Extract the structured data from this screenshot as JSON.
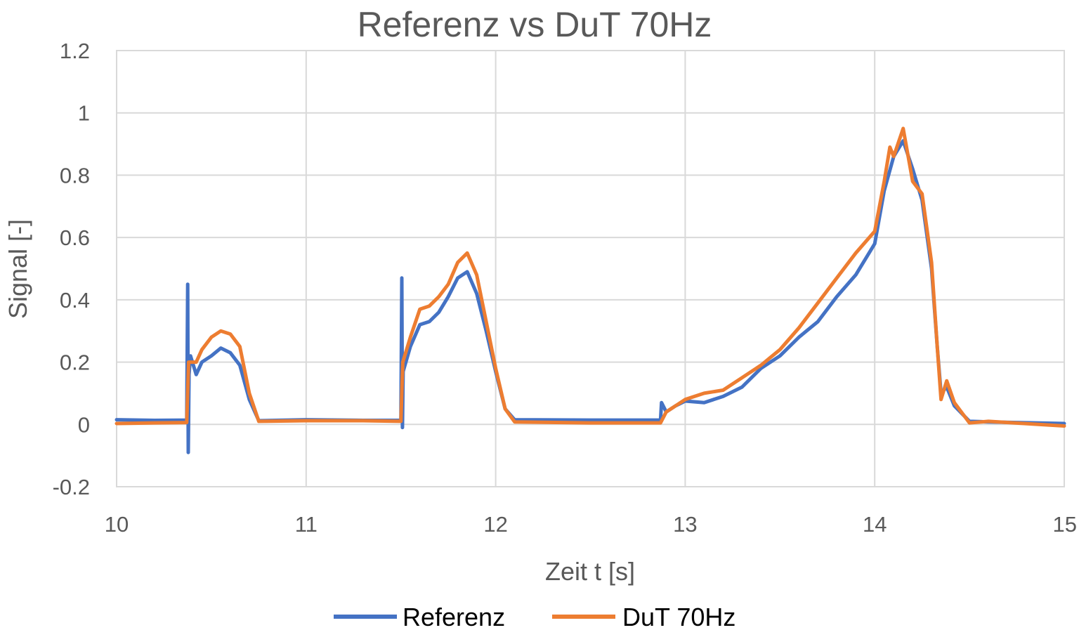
{
  "chart_data": {
    "type": "line",
    "title": "Referenz vs DuT 70Hz",
    "xlabel": "Zeit t [s]",
    "ylabel": "Signal [-]",
    "xlim": [
      10,
      15
    ],
    "ylim": [
      -0.2,
      1.2
    ],
    "x_ticks": [
      10,
      11,
      12,
      13,
      14,
      15
    ],
    "y_ticks": [
      -0.2,
      0,
      0.2,
      0.4,
      0.6,
      0.8,
      1,
      1.2
    ],
    "x_tick_labels": [
      "10",
      "11",
      "12",
      "13",
      "14",
      "15"
    ],
    "y_tick_labels": [
      "-0.2",
      "0",
      "0.2",
      "0.4",
      "0.6",
      "0.8",
      "1",
      "1.2"
    ],
    "grid": true,
    "legend_position": "bottom",
    "series": [
      {
        "name": "Referenz",
        "color": "#4472c4",
        "points": [
          [
            10.0,
            0.015
          ],
          [
            10.2,
            0.013
          ],
          [
            10.37,
            0.014
          ],
          [
            10.375,
            0.45
          ],
          [
            10.378,
            -0.09
          ],
          [
            10.382,
            0.16
          ],
          [
            10.39,
            0.22
          ],
          [
            10.42,
            0.16
          ],
          [
            10.45,
            0.2
          ],
          [
            10.5,
            0.22
          ],
          [
            10.55,
            0.245
          ],
          [
            10.6,
            0.23
          ],
          [
            10.65,
            0.19
          ],
          [
            10.7,
            0.08
          ],
          [
            10.75,
            0.012
          ],
          [
            11.0,
            0.015
          ],
          [
            11.3,
            0.013
          ],
          [
            11.5,
            0.013
          ],
          [
            11.505,
            0.47
          ],
          [
            11.508,
            -0.01
          ],
          [
            11.512,
            0.17
          ],
          [
            11.55,
            0.25
          ],
          [
            11.6,
            0.32
          ],
          [
            11.65,
            0.33
          ],
          [
            11.7,
            0.36
          ],
          [
            11.75,
            0.41
          ],
          [
            11.8,
            0.47
          ],
          [
            11.85,
            0.49
          ],
          [
            11.9,
            0.42
          ],
          [
            11.95,
            0.3
          ],
          [
            12.0,
            0.17
          ],
          [
            12.05,
            0.05
          ],
          [
            12.1,
            0.015
          ],
          [
            12.5,
            0.014
          ],
          [
            12.87,
            0.014
          ],
          [
            12.875,
            0.07
          ],
          [
            12.9,
            0.04
          ],
          [
            12.95,
            0.06
          ],
          [
            13.0,
            0.075
          ],
          [
            13.1,
            0.07
          ],
          [
            13.2,
            0.09
          ],
          [
            13.3,
            0.12
          ],
          [
            13.4,
            0.18
          ],
          [
            13.5,
            0.22
          ],
          [
            13.6,
            0.28
          ],
          [
            13.7,
            0.33
          ],
          [
            13.8,
            0.41
          ],
          [
            13.9,
            0.48
          ],
          [
            14.0,
            0.58
          ],
          [
            14.05,
            0.75
          ],
          [
            14.1,
            0.86
          ],
          [
            14.15,
            0.91
          ],
          [
            14.2,
            0.82
          ],
          [
            14.25,
            0.72
          ],
          [
            14.3,
            0.5
          ],
          [
            14.33,
            0.25
          ],
          [
            14.35,
            0.1
          ],
          [
            14.38,
            0.12
          ],
          [
            14.42,
            0.06
          ],
          [
            14.5,
            0.01
          ],
          [
            14.6,
            0.008
          ],
          [
            15.0,
            0.003
          ]
        ]
      },
      {
        "name": "DuT 70Hz",
        "color": "#ed7d31",
        "points": [
          [
            10.0,
            0.003
          ],
          [
            10.2,
            0.005
          ],
          [
            10.37,
            0.006
          ],
          [
            10.38,
            0.2
          ],
          [
            10.42,
            0.2
          ],
          [
            10.45,
            0.24
          ],
          [
            10.5,
            0.28
          ],
          [
            10.55,
            0.3
          ],
          [
            10.6,
            0.29
          ],
          [
            10.65,
            0.25
          ],
          [
            10.7,
            0.1
          ],
          [
            10.75,
            0.01
          ],
          [
            11.0,
            0.012
          ],
          [
            11.3,
            0.012
          ],
          [
            11.5,
            0.01
          ],
          [
            11.51,
            0.2
          ],
          [
            11.55,
            0.28
          ],
          [
            11.6,
            0.37
          ],
          [
            11.65,
            0.38
          ],
          [
            11.7,
            0.41
          ],
          [
            11.75,
            0.45
          ],
          [
            11.8,
            0.52
          ],
          [
            11.85,
            0.55
          ],
          [
            11.9,
            0.48
          ],
          [
            11.95,
            0.33
          ],
          [
            12.0,
            0.18
          ],
          [
            12.05,
            0.05
          ],
          [
            12.1,
            0.008
          ],
          [
            12.5,
            0.005
          ],
          [
            12.87,
            0.005
          ],
          [
            12.9,
            0.04
          ],
          [
            12.95,
            0.06
          ],
          [
            13.0,
            0.08
          ],
          [
            13.1,
            0.1
          ],
          [
            13.2,
            0.11
          ],
          [
            13.3,
            0.15
          ],
          [
            13.4,
            0.19
          ],
          [
            13.5,
            0.24
          ],
          [
            13.6,
            0.31
          ],
          [
            13.7,
            0.39
          ],
          [
            13.8,
            0.47
          ],
          [
            13.9,
            0.55
          ],
          [
            14.0,
            0.62
          ],
          [
            14.05,
            0.78
          ],
          [
            14.08,
            0.89
          ],
          [
            14.1,
            0.86
          ],
          [
            14.15,
            0.95
          ],
          [
            14.2,
            0.78
          ],
          [
            14.25,
            0.74
          ],
          [
            14.3,
            0.52
          ],
          [
            14.33,
            0.25
          ],
          [
            14.35,
            0.08
          ],
          [
            14.38,
            0.14
          ],
          [
            14.42,
            0.07
          ],
          [
            14.5,
            0.005
          ],
          [
            14.6,
            0.01
          ],
          [
            15.0,
            -0.005
          ]
        ]
      }
    ]
  }
}
